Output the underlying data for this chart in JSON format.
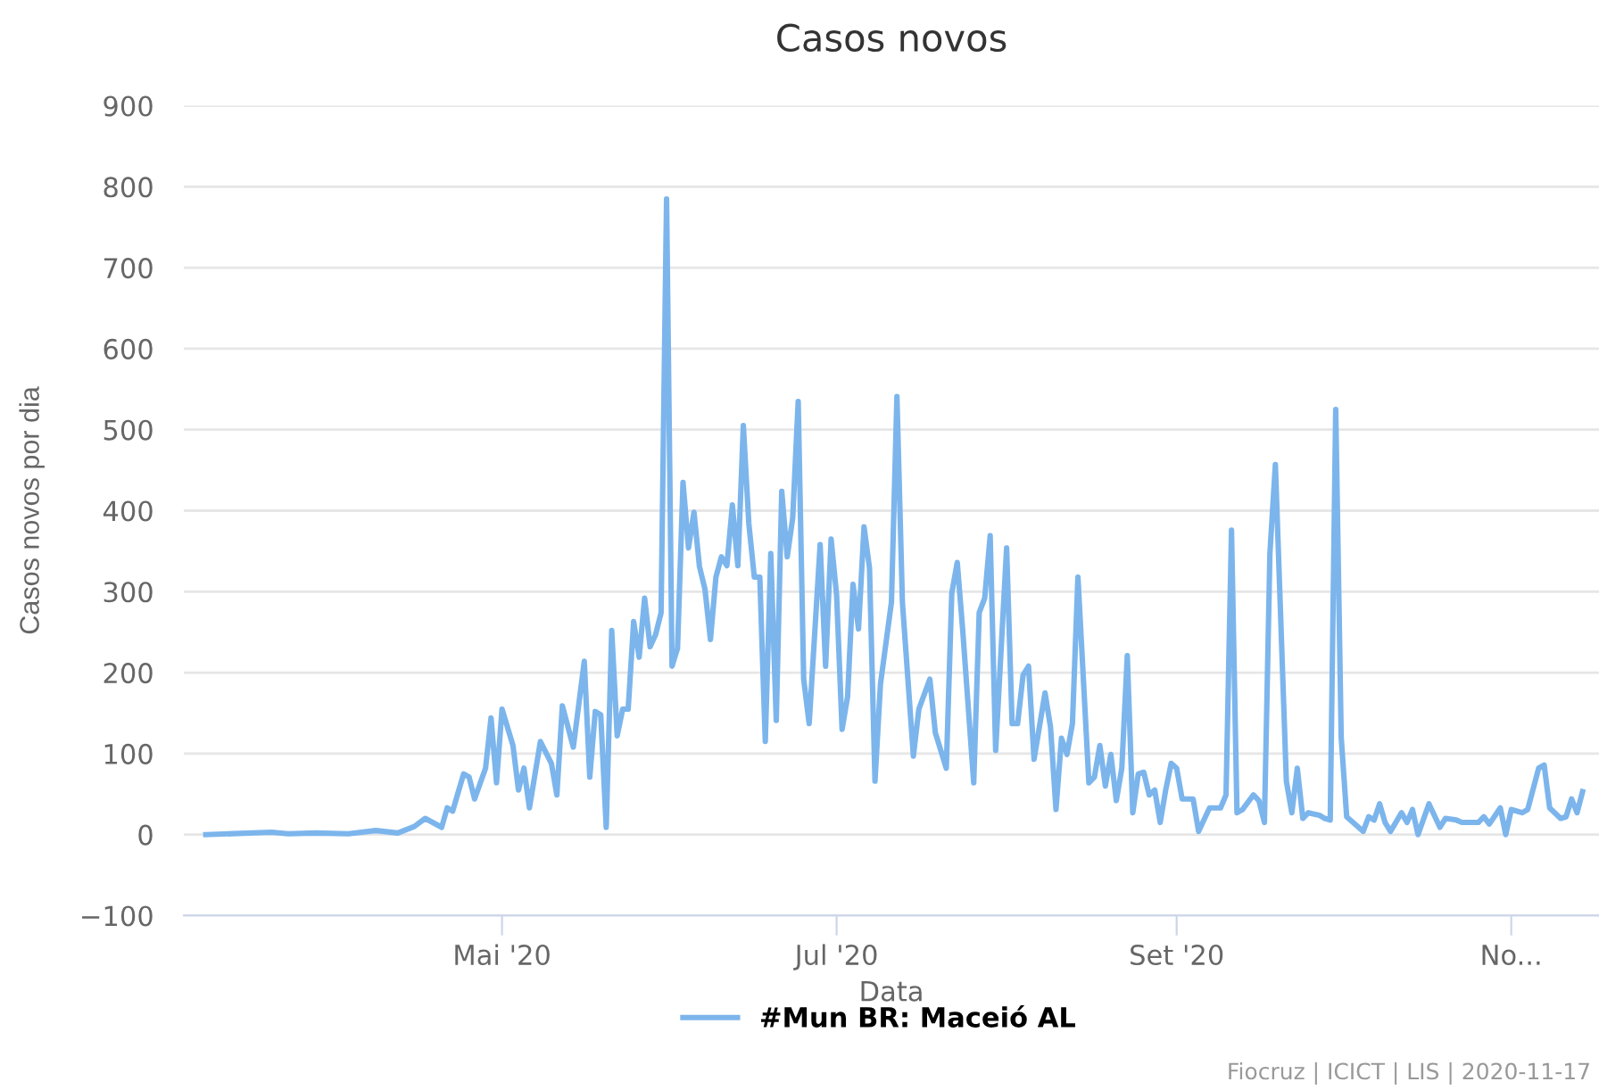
{
  "chart_data": {
    "type": "line",
    "title": "Casos novos",
    "xlabel": "Data",
    "ylabel": "Casos novos por dia",
    "xlim": [
      "2020-03-04",
      "2020-11-17"
    ],
    "ylim": [
      -100,
      900
    ],
    "xticks": [
      {
        "value": "2020-05-01",
        "label": "Mai '20"
      },
      {
        "value": "2020-07-01",
        "label": "Jul '20"
      },
      {
        "value": "2020-09-01",
        "label": "Set '20"
      },
      {
        "value": "2020-11-01",
        "label": "No..."
      }
    ],
    "yticks": [
      -100,
      0,
      100,
      200,
      300,
      400,
      500,
      600,
      700,
      800,
      900
    ],
    "grid": "y",
    "legend": "bottom",
    "marker": "none",
    "line_style": "solid",
    "annotations": [
      "Fiocruz | ICICT | LIS | 2020-11-17"
    ],
    "series": [
      {
        "name": "#Mun BR: Maceió AL",
        "color": "#7cb5ec",
        "x": [
          "2020-03-08",
          "2020-03-20",
          "2020-03-23",
          "2020-03-28",
          "2020-04-03",
          "2020-04-08",
          "2020-04-12",
          "2020-04-15",
          "2020-04-17",
          "2020-04-20",
          "2020-04-21",
          "2020-04-22",
          "2020-04-24",
          "2020-04-25",
          "2020-04-26",
          "2020-04-28",
          "2020-04-29",
          "2020-04-30",
          "2020-05-01",
          "2020-05-03",
          "2020-05-04",
          "2020-05-05",
          "2020-05-06",
          "2020-05-08",
          "2020-05-10",
          "2020-05-11",
          "2020-05-12",
          "2020-05-14",
          "2020-05-16",
          "2020-05-17",
          "2020-05-18",
          "2020-05-19",
          "2020-05-20",
          "2020-05-21",
          "2020-05-22",
          "2020-05-23",
          "2020-05-24",
          "2020-05-25",
          "2020-05-26",
          "2020-05-27",
          "2020-05-28",
          "2020-05-29",
          "2020-05-30",
          "2020-05-31",
          "2020-06-01",
          "2020-06-02",
          "2020-06-03",
          "2020-06-04",
          "2020-06-05",
          "2020-06-06",
          "2020-06-07",
          "2020-06-08",
          "2020-06-09",
          "2020-06-10",
          "2020-06-11",
          "2020-06-12",
          "2020-06-13",
          "2020-06-14",
          "2020-06-15",
          "2020-06-16",
          "2020-06-17",
          "2020-06-18",
          "2020-06-19",
          "2020-06-20",
          "2020-06-21",
          "2020-06-22",
          "2020-06-23",
          "2020-06-24",
          "2020-06-25",
          "2020-06-26",
          "2020-06-28",
          "2020-06-29",
          "2020-06-30",
          "2020-07-01",
          "2020-07-02",
          "2020-07-03",
          "2020-07-04",
          "2020-07-05",
          "2020-07-06",
          "2020-07-07",
          "2020-07-08",
          "2020-07-09",
          "2020-07-11",
          "2020-07-12",
          "2020-07-13",
          "2020-07-15",
          "2020-07-16",
          "2020-07-18",
          "2020-07-19",
          "2020-07-21",
          "2020-07-22",
          "2020-07-23",
          "2020-07-24",
          "2020-07-26",
          "2020-07-27",
          "2020-07-28",
          "2020-07-29",
          "2020-07-30",
          "2020-08-01",
          "2020-08-02",
          "2020-08-03",
          "2020-08-04",
          "2020-08-05",
          "2020-08-06",
          "2020-08-08",
          "2020-08-09",
          "2020-08-10",
          "2020-08-11",
          "2020-08-12",
          "2020-08-13",
          "2020-08-14",
          "2020-08-16",
          "2020-08-17",
          "2020-08-18",
          "2020-08-19",
          "2020-08-20",
          "2020-08-21",
          "2020-08-22",
          "2020-08-23",
          "2020-08-24",
          "2020-08-25",
          "2020-08-26",
          "2020-08-27",
          "2020-08-28",
          "2020-08-29",
          "2020-08-30",
          "2020-08-31",
          "2020-09-01",
          "2020-09-02",
          "2020-09-04",
          "2020-09-05",
          "2020-09-07",
          "2020-09-09",
          "2020-09-10",
          "2020-09-11",
          "2020-09-12",
          "2020-09-13",
          "2020-09-15",
          "2020-09-16",
          "2020-09-17",
          "2020-09-18",
          "2020-09-19",
          "2020-09-21",
          "2020-09-22",
          "2020-09-23",
          "2020-09-24",
          "2020-09-25",
          "2020-09-27",
          "2020-09-28",
          "2020-09-29",
          "2020-09-30",
          "2020-10-01",
          "2020-10-02",
          "2020-10-05",
          "2020-10-06",
          "2020-10-07",
          "2020-10-08",
          "2020-10-09",
          "2020-10-10",
          "2020-10-12",
          "2020-10-13",
          "2020-10-14",
          "2020-10-15",
          "2020-10-17",
          "2020-10-19",
          "2020-10-20",
          "2020-10-22",
          "2020-10-23",
          "2020-10-26",
          "2020-10-27",
          "2020-10-28",
          "2020-10-30",
          "2020-10-31",
          "2020-11-01",
          "2020-11-03",
          "2020-11-04",
          "2020-11-06",
          "2020-11-07",
          "2020-11-08",
          "2020-11-10",
          "2020-11-11",
          "2020-11-12",
          "2020-11-13",
          "2020-11-14"
        ],
        "values": [
          0,
          3,
          1,
          2,
          1,
          5,
          2,
          10,
          20,
          9,
          33,
          29,
          75,
          71,
          44,
          82,
          144,
          64,
          155,
          110,
          55,
          82,
          33,
          115,
          88,
          49,
          159,
          108,
          214,
          71,
          152,
          148,
          9,
          252,
          122,
          155,
          155,
          263,
          219,
          292,
          232,
          247,
          274,
          785,
          208,
          230,
          435,
          354,
          398,
          331,
          303,
          241,
          318,
          343,
          332,
          407,
          332,
          505,
          384,
          318,
          318,
          115,
          347,
          141,
          424,
          343,
          391,
          535,
          192,
          137,
          358,
          208,
          365,
          296,
          130,
          170,
          309,
          254,
          380,
          329,
          66,
          186,
          287,
          541,
          287,
          97,
          155,
          192,
          126,
          82,
          298,
          336,
          252,
          64,
          274,
          292,
          369,
          104,
          354,
          137,
          137,
          197,
          208,
          93,
          175,
          133,
          31,
          119,
          99,
          137,
          318,
          64,
          71,
          110,
          60,
          99,
          42,
          82,
          221,
          27,
          75,
          77,
          49,
          55,
          15,
          55,
          88,
          82,
          44,
          44,
          4,
          33,
          33,
          49,
          376,
          27,
          31,
          49,
          42,
          15,
          347,
          457,
          66,
          27,
          82,
          20,
          27,
          24,
          20,
          18,
          525,
          120,
          22,
          4,
          22,
          18,
          38,
          15,
          4,
          27,
          15,
          31,
          0,
          38,
          9,
          20,
          18,
          15,
          15,
          22,
          13,
          33,
          0,
          31,
          27,
          31,
          82,
          86,
          33,
          20,
          22,
          44,
          27,
          53
        ]
      }
    ]
  }
}
